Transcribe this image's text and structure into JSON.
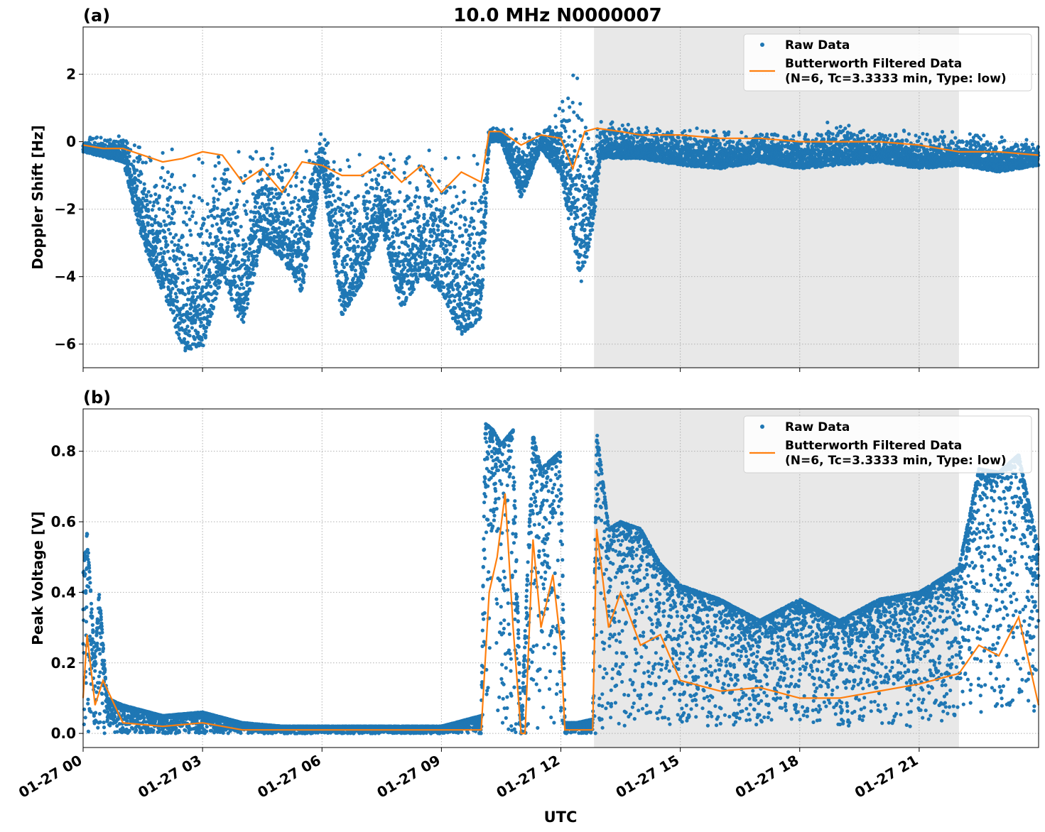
{
  "figure": {
    "title": "10.0 MHz N0000007",
    "xlabel": "UTC"
  },
  "colors": {
    "raw": "#1f77b4",
    "filtered": "#ff7f0e",
    "shade": "#e8e8e8",
    "grid": "#b0b0b0"
  },
  "chart_data": [
    {
      "type": "scatter",
      "panel_label": "(a)",
      "ylabel": "Doppler Shift [Hz]",
      "xlim": [
        "01-27 00:00",
        "01-28 00:00"
      ],
      "ylim": [
        -6.7,
        3.4
      ],
      "yticks": [
        2,
        0,
        -2,
        -4,
        -6
      ],
      "ytick_labels": [
        "2",
        "0",
        "−2",
        "−4",
        "−6"
      ],
      "xticks": [
        "01-27 00:00",
        "01-27 03:00",
        "01-27 06:00",
        "01-27 09:00",
        "01-27 12:00",
        "01-27 15:00",
        "01-27 18:00",
        "01-27 21:00"
      ],
      "xtick_labels": [
        "01-27 00",
        "01-27 03",
        "01-27 06",
        "01-27 09",
        "01-27 12",
        "01-27 15",
        "01-27 18",
        "01-27 21"
      ],
      "shaded_interval": [
        "01-27 12:50",
        "01-27 22:00"
      ],
      "grid": true,
      "legend_placement": "top-right",
      "series": [
        {
          "name": "Raw Data",
          "style": "points",
          "envelope_hours": [
            0,
            1,
            1.5,
            2,
            2.5,
            3,
            3.5,
            4,
            4.5,
            5,
            5.5,
            6,
            6.5,
            7,
            7.5,
            8,
            8.5,
            9,
            9.5,
            10,
            10.2,
            10.5,
            11,
            11.5,
            12,
            12.5,
            12.8,
            13,
            14,
            15,
            16,
            17,
            18,
            19,
            20,
            21,
            22,
            23,
            24
          ],
          "envelope_min": [
            -0.3,
            -0.6,
            -3.0,
            -4.5,
            -6.2,
            -6.2,
            -4.0,
            -5.5,
            -3.0,
            -3.5,
            -4.5,
            -0.8,
            -5.2,
            -4.2,
            -2.5,
            -5.0,
            -4.0,
            -4.5,
            -5.8,
            -5.2,
            0.0,
            0.0,
            -1.7,
            -0.2,
            -1.0,
            -4.3,
            -2.6,
            -0.5,
            -0.5,
            -0.7,
            -0.8,
            -0.6,
            -0.8,
            -0.7,
            -0.6,
            -0.8,
            -0.7,
            -0.9,
            -0.7
          ],
          "envelope_max": [
            0.2,
            0.3,
            0.3,
            0.2,
            0.2,
            0.2,
            0.2,
            0.3,
            0.2,
            0.1,
            0.1,
            0.3,
            0.2,
            0.2,
            0.2,
            0.2,
            0.2,
            0.3,
            0.3,
            0.2,
            0.6,
            0.5,
            0.5,
            0.3,
            1.5,
            3.0,
            0.8,
            0.8,
            0.6,
            0.5,
            0.5,
            0.4,
            0.5,
            0.7,
            0.5,
            0.5,
            0.4,
            0.3,
            0.0
          ]
        },
        {
          "name": "Butterworth Filtered Data\n(N=6, Tc=3.3333 min, Type: low)",
          "style": "line",
          "x_hours": [
            0,
            0.5,
            1,
            1.5,
            2,
            2.5,
            3,
            3.5,
            4,
            4.5,
            5,
            5.5,
            6,
            6.5,
            7,
            7.5,
            8,
            8.5,
            9,
            9.5,
            10,
            10.2,
            10.5,
            11,
            11.5,
            12,
            12.3,
            12.6,
            12.9,
            13.5,
            14,
            14.5,
            15,
            16,
            17,
            18,
            19,
            20,
            21,
            22,
            23,
            24
          ],
          "y": [
            -0.1,
            -0.2,
            -0.2,
            -0.4,
            -0.6,
            -0.5,
            -0.3,
            -0.4,
            -1.2,
            -0.8,
            -1.5,
            -0.6,
            -0.7,
            -1.0,
            -1.0,
            -0.6,
            -1.2,
            -0.7,
            -1.5,
            -0.9,
            -1.2,
            0.3,
            0.3,
            -0.1,
            0.2,
            0.1,
            -0.8,
            0.3,
            0.4,
            0.3,
            0.2,
            0.2,
            0.2,
            0.1,
            0.1,
            0.0,
            0.0,
            0.0,
            -0.1,
            -0.3,
            -0.3,
            -0.4
          ]
        }
      ]
    },
    {
      "type": "scatter",
      "panel_label": "(b)",
      "ylabel": "Peak Voltage [V]",
      "xlim": [
        "01-27 00:00",
        "01-28 00:00"
      ],
      "ylim": [
        -0.04,
        0.92
      ],
      "yticks": [
        0.8,
        0.6,
        0.4,
        0.2,
        0.0
      ],
      "ytick_labels": [
        "0.8",
        "0.6",
        "0.4",
        "0.2",
        "0.0"
      ],
      "xticks": [
        "01-27 00:00",
        "01-27 03:00",
        "01-27 06:00",
        "01-27 09:00",
        "01-27 12:00",
        "01-27 15:00",
        "01-27 18:00",
        "01-27 21:00"
      ],
      "xtick_labels": [
        "01-27 00",
        "01-27 03",
        "01-27 06",
        "01-27 09",
        "01-27 12",
        "01-27 15",
        "01-27 18",
        "01-27 21"
      ],
      "shaded_interval": [
        "01-27 12:50",
        "01-27 22:00"
      ],
      "grid": true,
      "legend_placement": "top-right",
      "series": [
        {
          "name": "Raw Data",
          "style": "points",
          "envelope_hours": [
            0,
            0.1,
            0.3,
            0.4,
            0.6,
            1,
            2,
            3,
            4,
            5,
            6,
            7,
            8,
            9,
            10,
            10.1,
            10.3,
            10.5,
            10.8,
            11,
            11.3,
            11.5,
            12,
            12.1,
            12.4,
            12.8,
            12.9,
            13.2,
            13.5,
            14,
            14.5,
            15,
            16,
            17,
            18,
            19,
            20,
            21,
            22,
            22.5,
            23,
            23.5,
            24
          ],
          "envelope_min": [
            0.0,
            0.0,
            0.02,
            0.0,
            0.0,
            0.0,
            0.0,
            0.0,
            0.0,
            0.0,
            0.0,
            0.0,
            0.0,
            0.0,
            0.0,
            0.05,
            0.1,
            0.0,
            0.0,
            0.0,
            0.0,
            0.0,
            0.0,
            0.0,
            0.0,
            0.0,
            0.0,
            0.03,
            0.02,
            0.03,
            0.02,
            0.02,
            0.02,
            0.02,
            0.02,
            0.02,
            0.02,
            0.02,
            0.04,
            0.06,
            0.06,
            0.06,
            0.05
          ],
          "envelope_max": [
            0.45,
            0.57,
            0.2,
            0.41,
            0.1,
            0.08,
            0.05,
            0.06,
            0.03,
            0.02,
            0.02,
            0.02,
            0.02,
            0.02,
            0.05,
            0.88,
            0.86,
            0.82,
            0.86,
            0.0,
            0.85,
            0.75,
            0.8,
            0.03,
            0.03,
            0.04,
            0.86,
            0.58,
            0.6,
            0.58,
            0.48,
            0.42,
            0.38,
            0.32,
            0.38,
            0.32,
            0.38,
            0.4,
            0.47,
            0.75,
            0.74,
            0.79,
            0.52
          ]
        },
        {
          "name": "Butterworth Filtered Data\n(N=6, Tc=3.3333 min, Type: low)",
          "style": "line",
          "x_hours": [
            0,
            0.1,
            0.3,
            0.5,
            1,
            2,
            3,
            4,
            5,
            6,
            7,
            8,
            9,
            10,
            10.2,
            10.4,
            10.6,
            10.8,
            11,
            11.1,
            11.3,
            11.5,
            11.8,
            12,
            12.1,
            12.8,
            12.9,
            13.2,
            13.5,
            14,
            14.5,
            15,
            16,
            17,
            18,
            19,
            20,
            21,
            22,
            22.5,
            23,
            23.5,
            24
          ],
          "y": [
            0.1,
            0.28,
            0.08,
            0.15,
            0.03,
            0.02,
            0.03,
            0.01,
            0.01,
            0.01,
            0.01,
            0.01,
            0.01,
            0.01,
            0.4,
            0.5,
            0.68,
            0.3,
            0.0,
            0.0,
            0.55,
            0.3,
            0.45,
            0.25,
            0.01,
            0.01,
            0.58,
            0.3,
            0.4,
            0.25,
            0.28,
            0.15,
            0.12,
            0.13,
            0.1,
            0.1,
            0.12,
            0.14,
            0.17,
            0.25,
            0.22,
            0.33,
            0.08
          ]
        }
      ]
    }
  ]
}
